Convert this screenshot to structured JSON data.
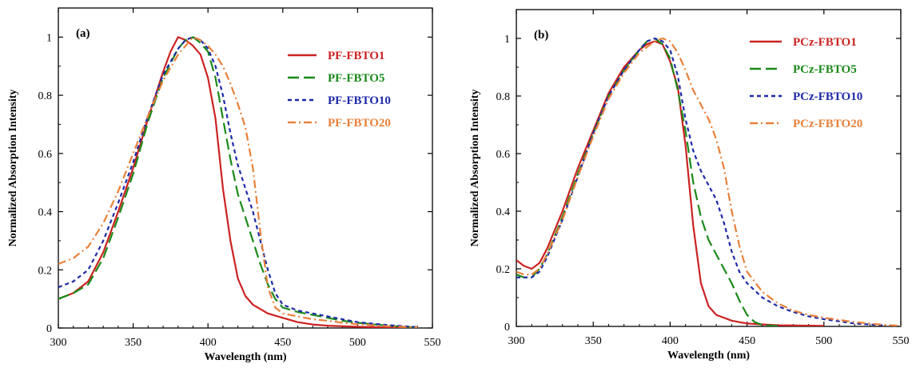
{
  "chart_data": [
    {
      "type": "line",
      "panel_label": "(a)",
      "xlabel": "Wavelength (nm)",
      "ylabel": "Normalized Absorption Intensity",
      "xlim": [
        300,
        550
      ],
      "ylim": [
        0,
        1.1
      ],
      "xticks": [
        300,
        350,
        400,
        450,
        500,
        550
      ],
      "yticks": [
        0,
        0.2,
        0.4,
        0.6,
        0.8,
        1
      ],
      "ytick_labels": [
        "0",
        "0.2",
        "0.4",
        "0.6",
        "0.8",
        "1"
      ],
      "grid": false,
      "legend_position": "top-right",
      "series": [
        {
          "name": "PF-FBTO1",
          "color": "#cc2222",
          "dash": "solid",
          "points": [
            [
              300,
              0.1
            ],
            [
              310,
              0.12
            ],
            [
              320,
              0.16
            ],
            [
              330,
              0.26
            ],
            [
              340,
              0.4
            ],
            [
              350,
              0.55
            ],
            [
              360,
              0.72
            ],
            [
              370,
              0.88
            ],
            [
              375,
              0.95
            ],
            [
              380,
              1.0
            ],
            [
              385,
              0.99
            ],
            [
              390,
              0.97
            ],
            [
              395,
              0.94
            ],
            [
              400,
              0.86
            ],
            [
              405,
              0.72
            ],
            [
              410,
              0.48
            ],
            [
              415,
              0.3
            ],
            [
              420,
              0.17
            ],
            [
              425,
              0.11
            ],
            [
              430,
              0.08
            ],
            [
              440,
              0.05
            ],
            [
              450,
              0.035
            ],
            [
              460,
              0.02
            ],
            [
              470,
              0.012
            ],
            [
              480,
              0.008
            ],
            [
              500,
              0.004
            ],
            [
              520,
              0.002
            ],
            [
              540,
              0.0
            ]
          ]
        },
        {
          "name": "PF-FBTO5",
          "color": "#1a8a1a",
          "dash": "long-dash",
          "points": [
            [
              300,
              0.1
            ],
            [
              310,
              0.12
            ],
            [
              320,
              0.15
            ],
            [
              330,
              0.24
            ],
            [
              340,
              0.38
            ],
            [
              350,
              0.53
            ],
            [
              360,
              0.71
            ],
            [
              370,
              0.86
            ],
            [
              380,
              0.96
            ],
            [
              385,
              0.99
            ],
            [
              390,
              1.0
            ],
            [
              395,
              0.98
            ],
            [
              400,
              0.95
            ],
            [
              405,
              0.86
            ],
            [
              410,
              0.72
            ],
            [
              415,
              0.58
            ],
            [
              420,
              0.46
            ],
            [
              425,
              0.38
            ],
            [
              430,
              0.3
            ],
            [
              435,
              0.22
            ],
            [
              440,
              0.15
            ],
            [
              445,
              0.1
            ],
            [
              450,
              0.07
            ],
            [
              460,
              0.055
            ],
            [
              470,
              0.045
            ],
            [
              480,
              0.035
            ],
            [
              490,
              0.025
            ],
            [
              500,
              0.018
            ],
            [
              520,
              0.008
            ],
            [
              540,
              0.002
            ]
          ]
        },
        {
          "name": "PF-FBTO10",
          "color": "#1f2aa8",
          "dash": "short-dash",
          "points": [
            [
              300,
              0.14
            ],
            [
              310,
              0.16
            ],
            [
              320,
              0.2
            ],
            [
              330,
              0.3
            ],
            [
              340,
              0.43
            ],
            [
              350,
              0.57
            ],
            [
              360,
              0.73
            ],
            [
              370,
              0.87
            ],
            [
              380,
              0.96
            ],
            [
              385,
              0.99
            ],
            [
              390,
              1.0
            ],
            [
              395,
              0.99
            ],
            [
              400,
              0.96
            ],
            [
              405,
              0.9
            ],
            [
              410,
              0.8
            ],
            [
              415,
              0.67
            ],
            [
              420,
              0.56
            ],
            [
              425,
              0.48
            ],
            [
              430,
              0.4
            ],
            [
              435,
              0.3
            ],
            [
              440,
              0.2
            ],
            [
              445,
              0.12
            ],
            [
              450,
              0.08
            ],
            [
              460,
              0.06
            ],
            [
              470,
              0.05
            ],
            [
              480,
              0.04
            ],
            [
              490,
              0.03
            ],
            [
              500,
              0.02
            ],
            [
              520,
              0.01
            ],
            [
              540,
              0.003
            ]
          ]
        },
        {
          "name": "PF-FBTO20",
          "color": "#e8803a",
          "dash": "dash-dot",
          "points": [
            [
              300,
              0.22
            ],
            [
              310,
              0.24
            ],
            [
              320,
              0.28
            ],
            [
              330,
              0.36
            ],
            [
              340,
              0.47
            ],
            [
              350,
              0.6
            ],
            [
              360,
              0.73
            ],
            [
              370,
              0.85
            ],
            [
              380,
              0.94
            ],
            [
              385,
              0.97
            ],
            [
              390,
              1.0
            ],
            [
              395,
              0.99
            ],
            [
              400,
              0.97
            ],
            [
              405,
              0.94
            ],
            [
              410,
              0.9
            ],
            [
              415,
              0.84
            ],
            [
              420,
              0.77
            ],
            [
              425,
              0.69
            ],
            [
              430,
              0.55
            ],
            [
              435,
              0.33
            ],
            [
              440,
              0.14
            ],
            [
              445,
              0.07
            ],
            [
              450,
              0.05
            ],
            [
              460,
              0.04
            ],
            [
              470,
              0.03
            ],
            [
              480,
              0.025
            ],
            [
              490,
              0.018
            ],
            [
              500,
              0.013
            ],
            [
              520,
              0.006
            ],
            [
              540,
              0.002
            ]
          ]
        }
      ]
    },
    {
      "type": "line",
      "panel_label": "(b)",
      "xlabel": "Wavelength (nm)",
      "ylabel": "Normalized Absorption Intensity",
      "xlim": [
        300,
        550
      ],
      "ylim": [
        0,
        1.1
      ],
      "xticks": [
        300,
        350,
        400,
        450,
        500,
        550
      ],
      "yticks": [
        0,
        0.2,
        0.4,
        0.6,
        0.8,
        1
      ],
      "ytick_labels": [
        "0",
        "0.2",
        "0.4",
        "0.6",
        "0.8",
        "1"
      ],
      "grid": false,
      "legend_position": "top-right",
      "series": [
        {
          "name": "PCz-FBTO1",
          "color": "#cc2222",
          "dash": "solid",
          "points": [
            [
              300,
              0.23
            ],
            [
              305,
              0.21
            ],
            [
              310,
              0.2
            ],
            [
              315,
              0.22
            ],
            [
              320,
              0.27
            ],
            [
              330,
              0.4
            ],
            [
              340,
              0.55
            ],
            [
              350,
              0.68
            ],
            [
              360,
              0.81
            ],
            [
              370,
              0.9
            ],
            [
              380,
              0.96
            ],
            [
              385,
              0.98
            ],
            [
              390,
              0.99
            ],
            [
              395,
              0.98
            ],
            [
              400,
              0.92
            ],
            [
              405,
              0.83
            ],
            [
              410,
              0.63
            ],
            [
              415,
              0.35
            ],
            [
              420,
              0.15
            ],
            [
              425,
              0.07
            ],
            [
              430,
              0.04
            ],
            [
              440,
              0.02
            ],
            [
              450,
              0.01
            ],
            [
              470,
              0.004
            ],
            [
              500,
              0.002
            ]
          ]
        },
        {
          "name": "PCz-FBTO5",
          "color": "#1a8a1a",
          "dash": "long-dash",
          "points": [
            [
              300,
              0.18
            ],
            [
              305,
              0.17
            ],
            [
              310,
              0.17
            ],
            [
              315,
              0.2
            ],
            [
              320,
              0.25
            ],
            [
              330,
              0.38
            ],
            [
              340,
              0.53
            ],
            [
              350,
              0.67
            ],
            [
              360,
              0.8
            ],
            [
              370,
              0.89
            ],
            [
              380,
              0.96
            ],
            [
              385,
              0.99
            ],
            [
              390,
              1.0
            ],
            [
              395,
              0.98
            ],
            [
              400,
              0.93
            ],
            [
              405,
              0.82
            ],
            [
              410,
              0.68
            ],
            [
              415,
              0.5
            ],
            [
              420,
              0.38
            ],
            [
              425,
              0.3
            ],
            [
              430,
              0.25
            ],
            [
              435,
              0.2
            ],
            [
              440,
              0.15
            ],
            [
              445,
              0.09
            ],
            [
              450,
              0.04
            ],
            [
              455,
              0.015
            ],
            [
              460,
              0.005
            ],
            [
              470,
              0.001
            ]
          ]
        },
        {
          "name": "PCz-FBTO10",
          "color": "#1f2aa8",
          "dash": "short-dash",
          "points": [
            [
              300,
              0.17
            ],
            [
              305,
              0.17
            ],
            [
              310,
              0.17
            ],
            [
              315,
              0.19
            ],
            [
              320,
              0.24
            ],
            [
              330,
              0.37
            ],
            [
              340,
              0.52
            ],
            [
              350,
              0.67
            ],
            [
              360,
              0.8
            ],
            [
              370,
              0.89
            ],
            [
              380,
              0.96
            ],
            [
              385,
              0.99
            ],
            [
              390,
              1.0
            ],
            [
              395,
              0.99
            ],
            [
              400,
              0.96
            ],
            [
              405,
              0.87
            ],
            [
              410,
              0.72
            ],
            [
              415,
              0.61
            ],
            [
              420,
              0.54
            ],
            [
              425,
              0.49
            ],
            [
              430,
              0.44
            ],
            [
              435,
              0.36
            ],
            [
              440,
              0.26
            ],
            [
              445,
              0.19
            ],
            [
              450,
              0.15
            ],
            [
              460,
              0.1
            ],
            [
              470,
              0.07
            ],
            [
              480,
              0.05
            ],
            [
              490,
              0.035
            ],
            [
              500,
              0.025
            ],
            [
              520,
              0.01
            ],
            [
              540,
              0.003
            ]
          ]
        },
        {
          "name": "PCz-FBTO20",
          "color": "#e8803a",
          "dash": "dash-dot",
          "points": [
            [
              300,
              0.19
            ],
            [
              305,
              0.18
            ],
            [
              310,
              0.18
            ],
            [
              315,
              0.2
            ],
            [
              320,
              0.25
            ],
            [
              330,
              0.37
            ],
            [
              340,
              0.52
            ],
            [
              350,
              0.66
            ],
            [
              360,
              0.79
            ],
            [
              370,
              0.88
            ],
            [
              380,
              0.95
            ],
            [
              385,
              0.97
            ],
            [
              390,
              0.99
            ],
            [
              395,
              1.0
            ],
            [
              400,
              0.99
            ],
            [
              405,
              0.95
            ],
            [
              410,
              0.89
            ],
            [
              415,
              0.82
            ],
            [
              420,
              0.77
            ],
            [
              425,
              0.72
            ],
            [
              430,
              0.65
            ],
            [
              435,
              0.55
            ],
            [
              440,
              0.4
            ],
            [
              445,
              0.28
            ],
            [
              450,
              0.19
            ],
            [
              460,
              0.12
            ],
            [
              470,
              0.08
            ],
            [
              480,
              0.055
            ],
            [
              490,
              0.04
            ],
            [
              500,
              0.03
            ],
            [
              520,
              0.015
            ],
            [
              540,
              0.005
            ],
            [
              550,
              0.002
            ]
          ]
        }
      ]
    }
  ]
}
